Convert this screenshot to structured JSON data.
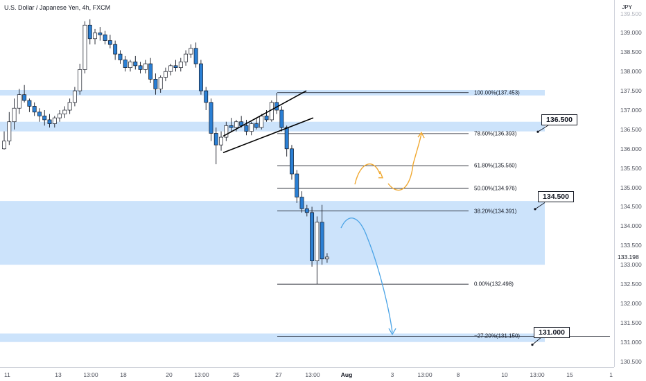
{
  "header": {
    "title": "U.S. Dollar / Japanese Yen, 4h, FXCM",
    "currency": "JPY"
  },
  "colors": {
    "up": "#2962ff",
    "up_fill": "#ffffff",
    "down_fill": "#2a7fd4",
    "candle_stroke": "#131722",
    "zone": "#cce3fb",
    "zone_strong": "#a9cff5",
    "fib_line": "#131722",
    "bull_path": "#f0a830",
    "bear_path": "#4aa3e6"
  },
  "chart_data": {
    "type": "candlestick",
    "title": "U.S. Dollar / Japanese Yen, 4h, FXCM",
    "ylabel": "JPY",
    "ylim": [
      130.35,
      139.85
    ],
    "yticks": [
      "139.500",
      "139.000",
      "138.500",
      "138.000",
      "137.500",
      "137.000",
      "136.500",
      "136.000",
      "135.500",
      "135.000",
      "134.500",
      "134.000",
      "133.500",
      "133.000",
      "132.500",
      "132.000",
      "131.500",
      "131.000",
      "130.500"
    ],
    "xticks": [
      "11",
      "13",
      "13:00",
      "18",
      "20",
      "13:00",
      "25",
      "27",
      "13:00",
      "Aug",
      "3",
      "13:00",
      "8",
      "10",
      "13:00",
      "15",
      "1"
    ],
    "last_price": "133.198",
    "candles": [
      [
        136.0,
        136.45,
        135.98,
        136.2
      ],
      [
        136.2,
        136.95,
        136.1,
        136.7
      ],
      [
        136.7,
        137.3,
        136.5,
        137.05
      ],
      [
        137.05,
        137.55,
        136.9,
        137.4
      ],
      [
        137.4,
        137.65,
        137.2,
        137.25
      ],
      [
        137.25,
        137.3,
        136.95,
        137.1
      ],
      [
        137.1,
        137.2,
        136.85,
        136.95
      ],
      [
        136.95,
        137.05,
        136.7,
        136.85
      ],
      [
        136.85,
        137.0,
        136.6,
        136.75
      ],
      [
        136.75,
        136.9,
        136.55,
        136.65
      ],
      [
        136.65,
        136.85,
        136.55,
        136.8
      ],
      [
        136.8,
        137.0,
        136.7,
        136.9
      ],
      [
        136.9,
        137.1,
        136.8,
        137.0
      ],
      [
        137.0,
        137.3,
        136.9,
        137.2
      ],
      [
        137.2,
        137.6,
        137.1,
        137.5
      ],
      [
        137.5,
        138.2,
        137.4,
        138.05
      ],
      [
        138.05,
        139.3,
        137.95,
        139.2
      ],
      [
        139.2,
        139.35,
        138.7,
        138.85
      ],
      [
        138.85,
        139.1,
        138.7,
        139.0
      ],
      [
        139.0,
        139.15,
        138.8,
        138.95
      ],
      [
        138.95,
        139.05,
        138.7,
        138.8
      ],
      [
        138.8,
        138.95,
        138.6,
        138.7
      ],
      [
        138.7,
        138.8,
        138.3,
        138.45
      ],
      [
        138.45,
        138.55,
        138.2,
        138.3
      ],
      [
        138.3,
        138.4,
        138.0,
        138.1
      ],
      [
        138.1,
        138.3,
        138.0,
        138.25
      ],
      [
        138.25,
        138.4,
        138.05,
        138.15
      ],
      [
        138.15,
        138.25,
        137.95,
        138.05
      ],
      [
        138.05,
        138.3,
        137.95,
        138.2
      ],
      [
        138.2,
        138.35,
        137.7,
        137.8
      ],
      [
        137.8,
        137.95,
        137.4,
        137.55
      ],
      [
        137.55,
        137.9,
        137.45,
        137.85
      ],
      [
        137.85,
        138.1,
        137.75,
        138.0
      ],
      [
        138.0,
        138.2,
        137.9,
        138.15
      ],
      [
        138.15,
        138.3,
        138.0,
        138.1
      ],
      [
        138.1,
        138.35,
        138.0,
        138.25
      ],
      [
        138.25,
        138.55,
        138.15,
        138.45
      ],
      [
        138.45,
        138.7,
        138.35,
        138.6
      ],
      [
        138.6,
        138.75,
        138.1,
        138.2
      ],
      [
        138.2,
        138.3,
        137.4,
        137.5
      ],
      [
        137.5,
        137.6,
        137.0,
        137.2
      ],
      [
        137.2,
        137.3,
        136.2,
        136.4
      ],
      [
        136.4,
        136.55,
        135.6,
        136.1
      ],
      [
        136.1,
        136.45,
        135.95,
        136.3
      ],
      [
        136.3,
        136.7,
        136.2,
        136.6
      ],
      [
        136.6,
        136.8,
        136.45,
        136.55
      ],
      [
        136.55,
        136.75,
        136.45,
        136.7
      ],
      [
        136.7,
        136.85,
        136.55,
        136.6
      ],
      [
        136.6,
        136.75,
        136.35,
        136.45
      ],
      [
        136.45,
        136.7,
        136.35,
        136.65
      ],
      [
        136.65,
        136.8,
        136.5,
        136.55
      ],
      [
        136.55,
        136.9,
        136.5,
        136.85
      ],
      [
        136.85,
        137.0,
        136.7,
        136.75
      ],
      [
        136.75,
        137.25,
        136.7,
        137.2
      ],
      [
        137.2,
        137.45,
        136.9,
        137.0
      ],
      [
        137.0,
        137.1,
        136.45,
        136.55
      ],
      [
        136.55,
        136.6,
        135.8,
        136.0
      ],
      [
        136.0,
        136.1,
        135.2,
        135.35
      ],
      [
        135.35,
        135.45,
        134.6,
        134.75
      ],
      [
        134.75,
        134.9,
        134.35,
        134.45
      ],
      [
        134.45,
        134.55,
        134.25,
        134.35
      ],
      [
        134.35,
        134.5,
        132.95,
        133.1
      ],
      [
        133.1,
        134.25,
        132.5,
        134.1
      ],
      [
        134.1,
        134.55,
        133.0,
        133.15
      ],
      [
        133.15,
        133.3,
        133.05,
        133.2
      ]
    ],
    "zones": [
      {
        "low": 137.38,
        "high": 137.52
      },
      {
        "low": 136.45,
        "high": 136.7
      },
      {
        "low": 134.45,
        "high": 134.6
      },
      {
        "low": 133.0,
        "high": 134.65
      },
      {
        "low": 131.0,
        "high": 131.22
      }
    ],
    "channel": {
      "upper": [
        [
          "25",
          136.65
        ],
        [
          "27",
          137.5
        ]
      ],
      "lower": [
        [
          "25",
          135.9
        ],
        [
          "27",
          136.8
        ]
      ]
    },
    "fibonacci": [
      {
        "level": 137.453,
        "label": "100.00%(137.453)"
      },
      {
        "level": 136.393,
        "label": "78.60%(136.393)"
      },
      {
        "level": 135.56,
        "label": "61.80%(135.560)"
      },
      {
        "level": 134.976,
        "label": "50.00%(134.976)"
      },
      {
        "level": 134.391,
        "label": "38.20%(134.391)"
      },
      {
        "level": 132.498,
        "label": "0.00%(132.498)"
      },
      {
        "level": 131.15,
        "label": "−27.20%(131.150)"
      }
    ],
    "callouts": [
      {
        "label": "136.500",
        "price": 136.5
      },
      {
        "label": "134.500",
        "price": 134.5
      },
      {
        "label": "131.000",
        "price": 131.0
      }
    ],
    "projections": {
      "bullish": [
        [
          135.1
        ],
        [
          135.55
        ],
        [
          135.3
        ],
        [
          135.0
        ],
        [
          136.4
        ]
      ],
      "bearish": [
        [
          134.2
        ],
        [
          134.1
        ],
        [
          132.2
        ],
        [
          131.2
        ]
      ]
    }
  }
}
